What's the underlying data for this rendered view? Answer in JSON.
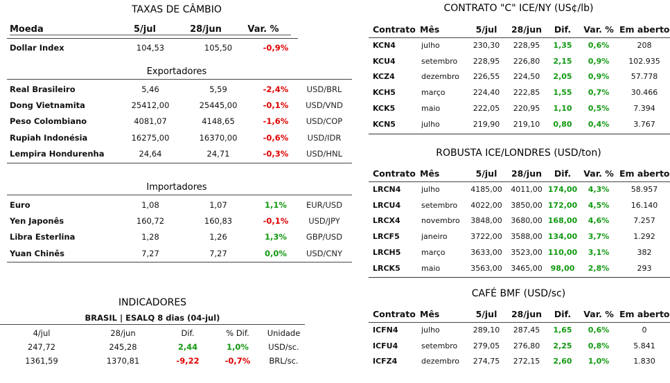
{
  "taxas": {
    "title": "TAXAS DE CÂMBIO",
    "headers": [
      "Moeda",
      "5/jul",
      "28/jun",
      "Var. %"
    ],
    "dollar_index": {
      "name": "Dollar Index",
      "v1": "104,53",
      "v2": "105,50",
      "var": "-0,9%",
      "cur": ""
    },
    "exportadores_label": "Exportadores",
    "exportadores": [
      {
        "name": "Real Brasileiro",
        "v1": "5,46",
        "v2": "5,59",
        "var": "-2,4%",
        "cur": "USD/BRL"
      },
      {
        "name": "Dong Vietnamita",
        "v1": "25412,00",
        "v2": "25445,00",
        "var": "-0,1%",
        "cur": "USD/VND"
      },
      {
        "name": "Peso Colombiano",
        "v1": "4081,07",
        "v2": "4148,65",
        "var": "-1,6%",
        "cur": "USD/COP"
      },
      {
        "name": "Rupiah Indonésia",
        "v1": "16275,00",
        "v2": "16370,00",
        "var": "-0,6%",
        "cur": "USD/IDR"
      },
      {
        "name": "Lempira Hondurenha",
        "v1": "24,64",
        "v2": "24,71",
        "var": "-0,3%",
        "cur": "USD/HNL"
      }
    ],
    "importadores_label": "Importadores",
    "importadores": [
      {
        "name": "Euro",
        "v1": "1,08",
        "v2": "1,07",
        "var": "1,1%",
        "cur": "EUR/USD"
      },
      {
        "name": "Yen Japonês",
        "v1": "160,72",
        "v2": "160,83",
        "var": "-0,1%",
        "cur": "USD/JPY"
      },
      {
        "name": "Libra Esterlina",
        "v1": "1,28",
        "v2": "1,26",
        "var": "1,3%",
        "cur": "GBP/USD"
      },
      {
        "name": "Yuan Chinês",
        "v1": "7,27",
        "v2": "7,27",
        "var": "0,0%",
        "cur": "USD/CNY"
      }
    ]
  },
  "indicadores": {
    "title": "INDICADORES",
    "subtitle": "BRASIL | ESALQ 8 dias (04-jul)",
    "headers": [
      "4/jul",
      "28/jun",
      "Dif.",
      "% Dif.",
      "Unidade"
    ],
    "rows": [
      {
        "a": "247,72",
        "b": "245,28",
        "dif": "2,44",
        "pdif": "1,0%",
        "unit": "USD/sc."
      },
      {
        "a": "1361,59",
        "b": "1370,81",
        "dif": "-9,22",
        "pdif": "-0,7%",
        "unit": "BRL/sc."
      }
    ]
  },
  "contract_headers": [
    "Contrato",
    "Mês",
    "5/jul",
    "28/jun",
    "Dif.",
    "Var. %",
    "Em aberto"
  ],
  "ny": {
    "title": "CONTRATO \"C\" ICE/NY (US¢/lb)",
    "rows": [
      {
        "code": "KCN4",
        "mes": "julho",
        "v1": "230,30",
        "v2": "228,95",
        "dif": "1,35",
        "var": "0,6%",
        "oi": "208"
      },
      {
        "code": "KCU4",
        "mes": "setembro",
        "v1": "228,95",
        "v2": "226,80",
        "dif": "2,15",
        "var": "0,9%",
        "oi": "102.935"
      },
      {
        "code": "KCZ4",
        "mes": "dezembro",
        "v1": "226,55",
        "v2": "224,50",
        "dif": "2,05",
        "var": "0,9%",
        "oi": "57.778"
      },
      {
        "code": "KCH5",
        "mes": "março",
        "v1": "224,40",
        "v2": "222,85",
        "dif": "1,55",
        "var": "0,7%",
        "oi": "30.466"
      },
      {
        "code": "KCK5",
        "mes": "maio",
        "v1": "222,05",
        "v2": "220,95",
        "dif": "1,10",
        "var": "0,5%",
        "oi": "7.394"
      },
      {
        "code": "KCN5",
        "mes": "julho",
        "v1": "219,90",
        "v2": "219,10",
        "dif": "0,80",
        "var": "0,4%",
        "oi": "3.767"
      }
    ]
  },
  "robusta": {
    "title": "ROBUSTA ICE/LONDRES (USD/ton)",
    "rows": [
      {
        "code": "LRCN4",
        "mes": "julho",
        "v1": "4185,00",
        "v2": "4011,00",
        "dif": "174,00",
        "var": "4,3%",
        "oi": "58.957"
      },
      {
        "code": "LRCU4",
        "mes": "setembro",
        "v1": "4022,00",
        "v2": "3850,00",
        "dif": "172,00",
        "var": "4,5%",
        "oi": "16.140"
      },
      {
        "code": "LRCX4",
        "mes": "novembro",
        "v1": "3848,00",
        "v2": "3680,00",
        "dif": "168,00",
        "var": "4,6%",
        "oi": "7.257"
      },
      {
        "code": "LRCF5",
        "mes": "janeiro",
        "v1": "3722,00",
        "v2": "3588,00",
        "dif": "134,00",
        "var": "3,7%",
        "oi": "1.292"
      },
      {
        "code": "LRCH5",
        "mes": "março",
        "v1": "3633,00",
        "v2": "3523,00",
        "dif": "110,00",
        "var": "3,1%",
        "oi": "382"
      },
      {
        "code": "LRCK5",
        "mes": "maio",
        "v1": "3563,00",
        "v2": "3465,00",
        "dif": "98,00",
        "var": "2,8%",
        "oi": "293"
      }
    ]
  },
  "bmf": {
    "title": "CAFÉ BMF (USD/sc)",
    "rows": [
      {
        "code": "ICFN4",
        "mes": "julho",
        "v1": "289,10",
        "v2": "287,45",
        "dif": "1,65",
        "var": "0,6%",
        "oi": "0"
      },
      {
        "code": "ICFU4",
        "mes": "setembro",
        "v1": "279,05",
        "v2": "276,80",
        "dif": "2,25",
        "var": "0,8%",
        "oi": "5.841"
      },
      {
        "code": "ICFZ4",
        "mes": "dezembro",
        "v1": "274,75",
        "v2": "272,15",
        "dif": "2,60",
        "var": "1,0%",
        "oi": "1.830"
      }
    ]
  },
  "colors": {
    "negative": "#e00000",
    "positive": "#119911"
  }
}
